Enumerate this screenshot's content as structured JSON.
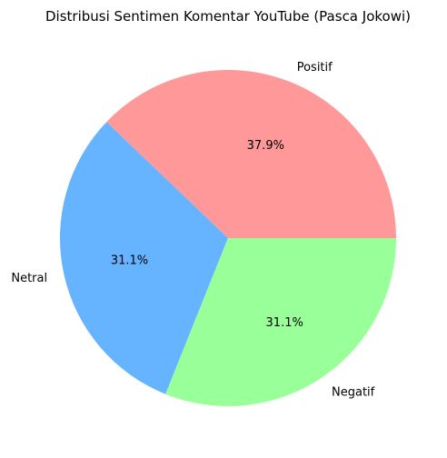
{
  "chart_data": {
    "type": "pie",
    "title": "Distribusi Sentimen Komentar YouTube (Pasca Jokowi)",
    "slices": [
      {
        "label": "Positif",
        "value": 37.9,
        "pct_label": "37.9%",
        "color": "#ff9999"
      },
      {
        "label": "Netral",
        "value": 31.1,
        "pct_label": "31.1%",
        "color": "#66b3ff"
      },
      {
        "label": "Negatif",
        "value": 31.1,
        "pct_label": "31.1%",
        "color": "#99ff99"
      }
    ],
    "start_angle_deg": 0,
    "direction": "counterclockwise"
  }
}
